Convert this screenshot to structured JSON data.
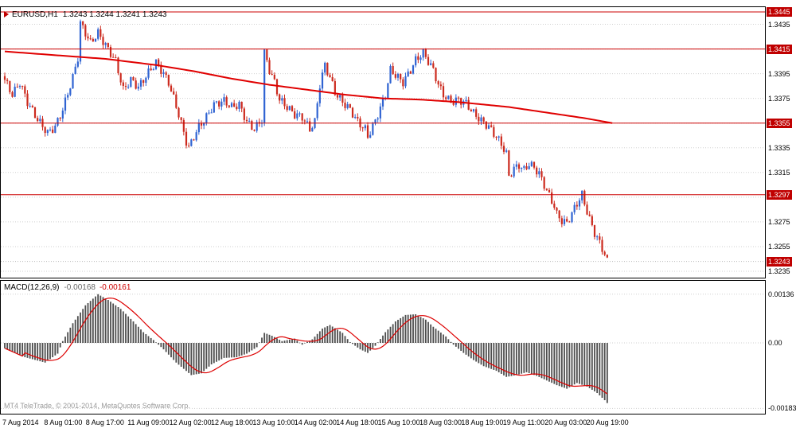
{
  "window": {
    "symbol_label": "EURUSD,H1",
    "ohlc_label": "1.3243 1.3244 1.3241 1.3243",
    "watermark": "MT4 TeleTrade, © 2001-2014, MetaQuotes Software Corp."
  },
  "colors": {
    "bull": "#2f63d2",
    "bear": "#cc2a1e",
    "ma": "#e00000",
    "hline": "#cc0000",
    "badge": "#c00000",
    "grid": "#cfcfcf",
    "bid_line": "#bbbbbb",
    "histogram": "#4d4d4d",
    "signal": "#dd0000",
    "axis_text": "#000000",
    "watermark_text": "#9a9a9a"
  },
  "time_axis": {
    "labels": [
      "7 Aug 2014",
      "8 Aug 01:00",
      "8 Aug 17:00",
      "11 Aug 09:00",
      "12 Aug 02:00",
      "12 Aug 18:00",
      "13 Aug 10:00",
      "14 Aug 02:00",
      "14 Aug 18:00",
      "15 Aug 10:00",
      "18 Aug 03:00",
      "18 Aug 19:00",
      "19 Aug 11:00",
      "20 Aug 03:00",
      "20 Aug 19:00"
    ]
  },
  "chart_data": [
    {
      "type": "candlestick",
      "symbol": "EURUSD",
      "timeframe": "H1",
      "ohlc_current": {
        "open": 1.3243,
        "high": 1.3244,
        "low": 1.3241,
        "close": 1.3243
      },
      "y_axis": {
        "min": 1.3235,
        "max": 1.3445,
        "plain_ticks": [
          1.3435,
          1.3395,
          1.3375,
          1.3335,
          1.3315,
          1.3275,
          1.3255,
          1.3235
        ],
        "grid_levels": [
          1.3435,
          1.3415,
          1.3395,
          1.3375,
          1.3355,
          1.3335,
          1.3315,
          1.3295,
          1.3275,
          1.3255,
          1.3235
        ],
        "badge_levels": [
          1.3445,
          1.3415,
          1.3355,
          1.3297
        ],
        "current_price": 1.3243
      },
      "hlines": [
        1.3445,
        1.3415,
        1.3355,
        1.3297
      ],
      "n_candles": 240,
      "wiggle": 0.00032,
      "wick": 0.0003,
      "close_anchors": [
        [
          0,
          1.339
        ],
        [
          3,
          1.3378
        ],
        [
          6,
          1.3388
        ],
        [
          9,
          1.3372
        ],
        [
          13,
          1.3358
        ],
        [
          17,
          1.3347
        ],
        [
          20,
          1.3352
        ],
        [
          23,
          1.3366
        ],
        [
          27,
          1.3392
        ],
        [
          29,
          1.3408
        ],
        [
          30,
          1.3436
        ],
        [
          32,
          1.3428
        ],
        [
          34,
          1.342
        ],
        [
          37,
          1.3428
        ],
        [
          40,
          1.3418
        ],
        [
          44,
          1.3405
        ],
        [
          47,
          1.3382
        ],
        [
          50,
          1.339
        ],
        [
          53,
          1.3384
        ],
        [
          57,
          1.3396
        ],
        [
          60,
          1.3404
        ],
        [
          63,
          1.3395
        ],
        [
          65,
          1.3388
        ],
        [
          69,
          1.3362
        ],
        [
          72,
          1.334
        ],
        [
          73,
          1.3335
        ],
        [
          75,
          1.3344
        ],
        [
          77,
          1.3352
        ],
        [
          80,
          1.336
        ],
        [
          83,
          1.337
        ],
        [
          87,
          1.3373
        ],
        [
          90,
          1.3368
        ],
        [
          93,
          1.337
        ],
        [
          96,
          1.3356
        ],
        [
          99,
          1.335
        ],
        [
          102,
          1.3358
        ],
        [
          103,
          1.3412
        ],
        [
          105,
          1.3398
        ],
        [
          107,
          1.3388
        ],
        [
          109,
          1.3374
        ],
        [
          112,
          1.3368
        ],
        [
          115,
          1.3362
        ],
        [
          118,
          1.336
        ],
        [
          121,
          1.335
        ],
        [
          123,
          1.3356
        ],
        [
          125,
          1.3386
        ],
        [
          127,
          1.3402
        ],
        [
          129,
          1.3392
        ],
        [
          131,
          1.338
        ],
        [
          134,
          1.3372
        ],
        [
          137,
          1.3366
        ],
        [
          140,
          1.3356
        ],
        [
          143,
          1.335
        ],
        [
          144,
          1.3344
        ],
        [
          146,
          1.3352
        ],
        [
          148,
          1.3362
        ],
        [
          151,
          1.3378
        ],
        [
          153,
          1.3398
        ],
        [
          156,
          1.3392
        ],
        [
          158,
          1.3388
        ],
        [
          161,
          1.3398
        ],
        [
          163,
          1.3406
        ],
        [
          166,
          1.3412
        ],
        [
          168,
          1.3405
        ],
        [
          170,
          1.3398
        ],
        [
          172,
          1.3386
        ],
        [
          174,
          1.3378
        ],
        [
          177,
          1.3372
        ],
        [
          180,
          1.3374
        ],
        [
          183,
          1.3371
        ],
        [
          186,
          1.3363
        ],
        [
          189,
          1.3357
        ],
        [
          192,
          1.3352
        ],
        [
          195,
          1.3344
        ],
        [
          197,
          1.3338
        ],
        [
          199,
          1.333
        ],
        [
          200,
          1.3312
        ],
        [
          202,
          1.3318
        ],
        [
          204,
          1.3321
        ],
        [
          206,
          1.3317
        ],
        [
          208,
          1.3322
        ],
        [
          210,
          1.3319
        ],
        [
          212,
          1.3314
        ],
        [
          214,
          1.3305
        ],
        [
          216,
          1.3296
        ],
        [
          218,
          1.3288
        ],
        [
          219,
          1.3281
        ],
        [
          221,
          1.3276
        ],
        [
          223,
          1.3274
        ],
        [
          225,
          1.3282
        ],
        [
          227,
          1.329
        ],
        [
          229,
          1.3297
        ],
        [
          230,
          1.329
        ],
        [
          232,
          1.3277
        ],
        [
          234,
          1.3266
        ],
        [
          236,
          1.3258
        ],
        [
          238,
          1.3249
        ],
        [
          239,
          1.3243
        ]
      ],
      "ma_anchors": [
        [
          0,
          1.3413
        ],
        [
          20,
          1.341
        ],
        [
          40,
          1.3407
        ],
        [
          60,
          1.3402
        ],
        [
          75,
          1.3397
        ],
        [
          90,
          1.3391
        ],
        [
          105,
          1.3386
        ],
        [
          120,
          1.3382
        ],
        [
          135,
          1.3378
        ],
        [
          150,
          1.3375
        ],
        [
          165,
          1.3374
        ],
        [
          180,
          1.3372
        ],
        [
          190,
          1.337
        ],
        [
          200,
          1.3368
        ],
        [
          210,
          1.3365
        ],
        [
          220,
          1.3362
        ],
        [
          230,
          1.3359
        ],
        [
          241,
          1.3355
        ]
      ]
    },
    {
      "type": "bar",
      "label": "MACD(12,26,9)",
      "value_main": "-0.00168",
      "value_signal": "-0.00161",
      "signal_period": 9,
      "ticks": [
        {
          "label": "0.00136",
          "value": 0.00136
        },
        {
          "label": "0.00",
          "value": 0
        },
        {
          "label": "-0.00183",
          "value": -0.00183
        }
      ],
      "anchors": [
        [
          0,
          -0.00015
        ],
        [
          8,
          -0.0004
        ],
        [
          16,
          -0.00055
        ],
        [
          21,
          -0.0003
        ],
        [
          23,
          5e-05
        ],
        [
          27,
          0.00055
        ],
        [
          32,
          0.00105
        ],
        [
          37,
          0.00136
        ],
        [
          41,
          0.0012
        ],
        [
          46,
          0.00095
        ],
        [
          51,
          0.0006
        ],
        [
          55,
          0.0003
        ],
        [
          59,
          8e-05
        ],
        [
          63,
          -0.00018
        ],
        [
          68,
          -0.00055
        ],
        [
          74,
          -0.0009
        ],
        [
          78,
          -0.00085
        ],
        [
          82,
          -0.0006
        ],
        [
          87,
          -0.00042
        ],
        [
          92,
          -0.0004
        ],
        [
          96,
          -0.0003
        ],
        [
          100,
          -0.00012
        ],
        [
          103,
          0.00028
        ],
        [
          106,
          0.0002
        ],
        [
          110,
          5e-05
        ],
        [
          115,
          0.00012
        ],
        [
          118,
          -5e-05
        ],
        [
          122,
          0.0001
        ],
        [
          126,
          0.0004
        ],
        [
          129,
          0.0005
        ],
        [
          134,
          0.00028
        ],
        [
          137,
          2e-05
        ],
        [
          141,
          -0.00018
        ],
        [
          144,
          -0.00028
        ],
        [
          147,
          -8e-05
        ],
        [
          151,
          0.0003
        ],
        [
          155,
          0.0006
        ],
        [
          159,
          0.00078
        ],
        [
          163,
          0.0008
        ],
        [
          167,
          0.00065
        ],
        [
          170,
          0.00045
        ],
        [
          175,
          0.00018
        ],
        [
          178,
          -5e-05
        ],
        [
          182,
          -0.00028
        ],
        [
          186,
          -0.00048
        ],
        [
          190,
          -0.00065
        ],
        [
          195,
          -0.00078
        ],
        [
          199,
          -0.00095
        ],
        [
          203,
          -0.0009
        ],
        [
          207,
          -0.00082
        ],
        [
          211,
          -0.00092
        ],
        [
          215,
          -0.00105
        ],
        [
          219,
          -0.00118
        ],
        [
          223,
          -0.00128
        ],
        [
          227,
          -0.00112
        ],
        [
          231,
          -0.00122
        ],
        [
          235,
          -0.0014
        ],
        [
          238,
          -0.0016
        ],
        [
          239,
          -0.00168
        ]
      ]
    }
  ]
}
